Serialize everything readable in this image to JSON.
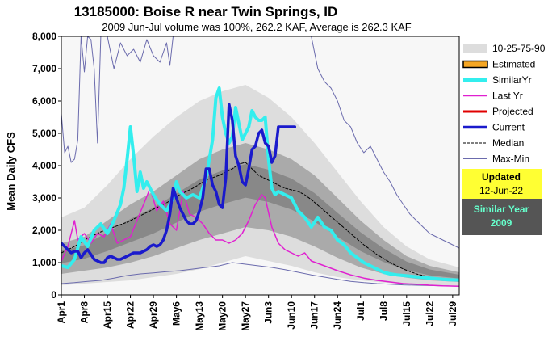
{
  "chart_data": {
    "type": "line",
    "title": "13185000: Boise R near Twin Springs, ID",
    "subtitle": "2009 Jun-Jul volume was 100%, 262.2 KAF, Average is 262.3 KAF",
    "ylabel": "Mean Daily CFS",
    "xlabel": "",
    "ylim": [
      0,
      8000
    ],
    "yticks": [
      0,
      1000,
      2000,
      3000,
      4000,
      5000,
      6000,
      7000,
      8000
    ],
    "ytick_labels": [
      "0",
      "1,000",
      "2,000",
      "3,000",
      "4,000",
      "5,000",
      "6,000",
      "7,000",
      "8,000"
    ],
    "xlim": [
      0,
      121
    ],
    "xticks": [
      0,
      7,
      14,
      21,
      28,
      35,
      42,
      49,
      56,
      63,
      70,
      77,
      84,
      91,
      98,
      105,
      112,
      119
    ],
    "xtick_labels": [
      "Apr1",
      "Apr8",
      "Apr15",
      "Apr22",
      "Apr29",
      "May6",
      "May13",
      "May20",
      "May27",
      "Jun3",
      "Jun10",
      "Jun17",
      "Jun24",
      "Jul1",
      "Jul8",
      "Jul15",
      "Jul22",
      "Jul29"
    ],
    "grid": false,
    "legend_position": "right",
    "bands": {
      "x": [
        0,
        7,
        14,
        21,
        28,
        35,
        42,
        49,
        56,
        63,
        70,
        77,
        84,
        91,
        98,
        105,
        112,
        121
      ],
      "p10": [
        300,
        350,
        400,
        450,
        550,
        650,
        800,
        1000,
        1200,
        1050,
        900,
        700,
        550,
        450,
        380,
        330,
        300,
        280
      ],
      "p25": [
        650,
        750,
        850,
        1000,
        1200,
        1450,
        1700,
        1900,
        2100,
        2000,
        1800,
        1500,
        1150,
        850,
        650,
        530,
        450,
        400
      ],
      "p75": [
        1600,
        1800,
        2300,
        2800,
        3200,
        3700,
        4200,
        4500,
        4700,
        4500,
        4200,
        3700,
        3000,
        2300,
        1700,
        1200,
        900,
        700
      ],
      "p90": [
        2400,
        2700,
        3400,
        4200,
        4900,
        5500,
        6000,
        6300,
        6500,
        6100,
        5500,
        4700,
        3800,
        2900,
        2100,
        1500,
        1100,
        850
      ]
    },
    "series": [
      {
        "name": "Max-Min",
        "color": "#6b6bad",
        "width": 1,
        "dash": "",
        "x": [
          0,
          1,
          2,
          3,
          4,
          5,
          6,
          7,
          8,
          9,
          10,
          11,
          12,
          14,
          16,
          18,
          20,
          22,
          24,
          26,
          28,
          30,
          32,
          33,
          34,
          36,
          38,
          40,
          42,
          44,
          46,
          48,
          50,
          52,
          54,
          56,
          58,
          60,
          62,
          64,
          66,
          68,
          70,
          72,
          74,
          76,
          78,
          80,
          82,
          84,
          86,
          88,
          90,
          92,
          94,
          96,
          98,
          100,
          102,
          104,
          106,
          108,
          110,
          112,
          114,
          116,
          118,
          121
        ],
        "y": [
          5600,
          4400,
          4600,
          4100,
          4200,
          4800,
          8000,
          6900,
          8000,
          7900,
          7000,
          4700,
          8000,
          8000,
          7000,
          7800,
          7400,
          7600,
          7200,
          7900,
          7400,
          7200,
          7800,
          7100,
          8000,
          8000,
          8000,
          8000,
          8000,
          8000,
          8000,
          8000,
          8000,
          8000,
          8000,
          8000,
          8000,
          8000,
          8000,
          8000,
          8000,
          8000,
          8000,
          8000,
          8000,
          8000,
          7000,
          6600,
          6400,
          6000,
          5400,
          5200,
          4700,
          4400,
          4600,
          4200,
          3800,
          3500,
          3100,
          2800,
          2500,
          2300,
          2100,
          1900,
          1800,
          1700,
          1600,
          1450
        ]
      },
      {
        "name": "Max-Min (min)",
        "color": "#6b6bad",
        "width": 1,
        "dash": "",
        "x": [
          0,
          4,
          8,
          12,
          16,
          20,
          24,
          28,
          32,
          36,
          40,
          44,
          48,
          52,
          56,
          60,
          64,
          68,
          72,
          76,
          80,
          84,
          88,
          92,
          96,
          100,
          104,
          108,
          112,
          116,
          121
        ],
        "y": [
          350,
          380,
          420,
          450,
          520,
          600,
          650,
          680,
          720,
          750,
          800,
          850,
          900,
          1000,
          950,
          900,
          850,
          780,
          700,
          620,
          550,
          480,
          420,
          380,
          350,
          330,
          310,
          300,
          290,
          280,
          270
        ]
      },
      {
        "name": "Median",
        "color": "#000000",
        "width": 1,
        "dash": "3,2",
        "x": [
          0,
          4,
          8,
          12,
          16,
          20,
          24,
          28,
          32,
          36,
          40,
          44,
          48,
          52,
          54,
          56,
          58,
          60,
          62,
          64,
          66,
          68,
          70,
          72,
          74,
          76,
          80,
          84,
          88,
          92,
          96,
          100,
          104,
          108,
          112,
          116,
          121
        ],
        "y": [
          1300,
          1500,
          1750,
          1950,
          2100,
          2250,
          2450,
          2650,
          2850,
          3100,
          3300,
          3550,
          3700,
          3900,
          4050,
          4100,
          3900,
          3700,
          3600,
          3500,
          3400,
          3300,
          3250,
          3200,
          3100,
          2950,
          2600,
          2250,
          1900,
          1550,
          1250,
          1000,
          800,
          650,
          550,
          500,
          470
        ]
      },
      {
        "name": "Last Yr",
        "color": "#e020d0",
        "width": 1.5,
        "dash": "",
        "x": [
          0,
          2,
          4,
          5,
          7,
          9,
          11,
          13,
          15,
          17,
          19,
          21,
          23,
          25,
          27,
          29,
          31,
          33,
          35,
          37,
          39,
          41,
          43,
          45,
          47,
          49,
          51,
          53,
          55,
          57,
          59,
          61,
          62,
          64,
          66,
          68,
          70,
          72,
          74,
          76,
          80,
          84,
          88,
          92,
          96,
          100,
          104,
          108,
          112,
          116,
          121
        ],
        "y": [
          1050,
          1500,
          2300,
          1700,
          1900,
          1600,
          1900,
          1800,
          2200,
          1600,
          1700,
          1800,
          2300,
          2800,
          3300,
          2600,
          2900,
          2200,
          2000,
          3200,
          2500,
          2400,
          2200,
          1900,
          1700,
          1700,
          1600,
          1700,
          1900,
          2300,
          2800,
          3100,
          3000,
          2100,
          1600,
          1400,
          1300,
          1200,
          1300,
          1050,
          900,
          750,
          620,
          520,
          450,
          400,
          350,
          330,
          300,
          280,
          270
        ]
      },
      {
        "name": "SimilarYr",
        "color": "#33eeee",
        "width": 4,
        "dash": "",
        "x": [
          0,
          2,
          4,
          6,
          8,
          10,
          12,
          14,
          16,
          18,
          19,
          20,
          21,
          22,
          23,
          24,
          25,
          26,
          28,
          30,
          32,
          34,
          35,
          36,
          38,
          40,
          42,
          44,
          46,
          47,
          48,
          49,
          50,
          51,
          52,
          53,
          54,
          55,
          56,
          57,
          58,
          59,
          60,
          61,
          62,
          63,
          64,
          65,
          66,
          68,
          70,
          72,
          74,
          76,
          78,
          80,
          82,
          84,
          86,
          88,
          90,
          92,
          94,
          96,
          98,
          100,
          102,
          104,
          106,
          108,
          110,
          112,
          114,
          116,
          118,
          121
        ],
        "y": [
          900,
          850,
          1100,
          1800,
          1500,
          2000,
          2200,
          1900,
          2300,
          2800,
          3300,
          4200,
          5200,
          4300,
          3200,
          3800,
          3300,
          3500,
          3100,
          2800,
          2600,
          3000,
          3500,
          3200,
          3000,
          3100,
          3000,
          3600,
          4800,
          6100,
          6400,
          5500,
          5000,
          4700,
          4900,
          5800,
          5300,
          4800,
          5000,
          5200,
          5700,
          5500,
          5400,
          5400,
          5500,
          4200,
          3300,
          3100,
          3200,
          3100,
          3000,
          2600,
          2400,
          2100,
          2400,
          2100,
          2000,
          1700,
          1550,
          1300,
          1150,
          1000,
          900,
          800,
          700,
          650,
          620,
          600,
          580,
          560,
          540,
          520,
          500,
          480,
          470,
          460
        ]
      },
      {
        "name": "Current",
        "color": "#1a1acc",
        "width": 3.5,
        "dash": "",
        "x": [
          0,
          1,
          2,
          3,
          4,
          5,
          6,
          7,
          8,
          9,
          10,
          11,
          12,
          13,
          14,
          15,
          16,
          17,
          18,
          19,
          20,
          21,
          22,
          23,
          24,
          25,
          26,
          27,
          28,
          29,
          30,
          31,
          32,
          33,
          34,
          35,
          36,
          37,
          38,
          39,
          40,
          41,
          42,
          43,
          44,
          45,
          46,
          47,
          48,
          49,
          50,
          51,
          52,
          53,
          54,
          55,
          56,
          57,
          58,
          59,
          60,
          61,
          62,
          63,
          64,
          65,
          66,
          67,
          68,
          69,
          70,
          71
        ],
        "y": [
          1600,
          1500,
          1400,
          1300,
          1350,
          1350,
          1150,
          1300,
          1400,
          1250,
          1100,
          1050,
          1000,
          1000,
          1150,
          1200,
          1150,
          1100,
          1100,
          1150,
          1200,
          1250,
          1300,
          1300,
          1300,
          1350,
          1400,
          1500,
          1550,
          1500,
          1550,
          1700,
          2000,
          2500,
          3300,
          3000,
          2700,
          2500,
          2300,
          2200,
          2200,
          2300,
          2600,
          3000,
          3900,
          3900,
          3400,
          3200,
          2800,
          2700,
          3600,
          5900,
          5400,
          4300,
          4000,
          3500,
          3400,
          3900,
          4500,
          4600,
          5000,
          5100,
          4700,
          4600,
          4100,
          4300,
          5200,
          5200,
          5200,
          5200,
          5200,
          5200
        ]
      }
    ],
    "legend": [
      {
        "label": "10-25-75-90",
        "kind": "band"
      },
      {
        "label": "Estimated",
        "kind": "orange-box"
      },
      {
        "label": "SimilarYr",
        "kind": "line",
        "color": "#33eeee",
        "width": 4
      },
      {
        "label": "Last Yr",
        "kind": "line",
        "color": "#e020d0",
        "width": 1.5
      },
      {
        "label": "Projected",
        "kind": "line",
        "color": "#e00000",
        "width": 3
      },
      {
        "label": "Current",
        "kind": "line",
        "color": "#1a1acc",
        "width": 3.5
      },
      {
        "label": "Median",
        "kind": "line",
        "color": "#000000",
        "width": 1,
        "dash": "3,2"
      },
      {
        "label": "Max-Min",
        "kind": "line",
        "color": "#6b6bad",
        "width": 1
      }
    ],
    "updated_box": {
      "label": "Updated",
      "date": "12-Jun-22"
    },
    "similar_box": {
      "label": "Similar Year",
      "year": "2009"
    }
  },
  "colors": {
    "band_outer": "#dddddd",
    "band_inner": "#aaaaaa",
    "median_zone": "#888888",
    "plot_bg": "#f7f7f7",
    "updated_bg": "#ffff33",
    "similar_bg": "#555555",
    "similar_text": "#66ffcc"
  }
}
